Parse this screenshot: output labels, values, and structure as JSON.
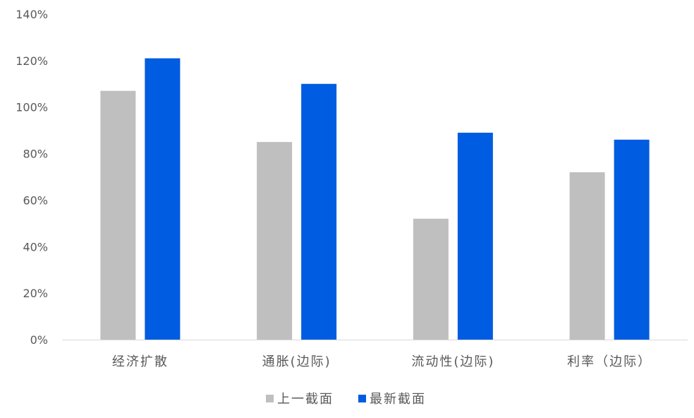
{
  "chart_data": {
    "type": "bar",
    "categories": [
      "经济扩散",
      "通胀(边际)",
      "流动性(边际)",
      "利率（边际）"
    ],
    "series": [
      {
        "name": "上一截面",
        "color": "#bfbfbf",
        "values": [
          107,
          85,
          52,
          72
        ]
      },
      {
        "name": "最新截面",
        "color": "#005ce0",
        "values": [
          121,
          110,
          89,
          86
        ]
      }
    ],
    "yticks": [
      "0%",
      "20%",
      "40%",
      "60%",
      "80%",
      "100%",
      "120%",
      "140%"
    ],
    "ylim": [
      0,
      140
    ],
    "unit": "%",
    "grid": false,
    "legend": "bottom",
    "title": "",
    "xlabel": "",
    "ylabel": ""
  }
}
